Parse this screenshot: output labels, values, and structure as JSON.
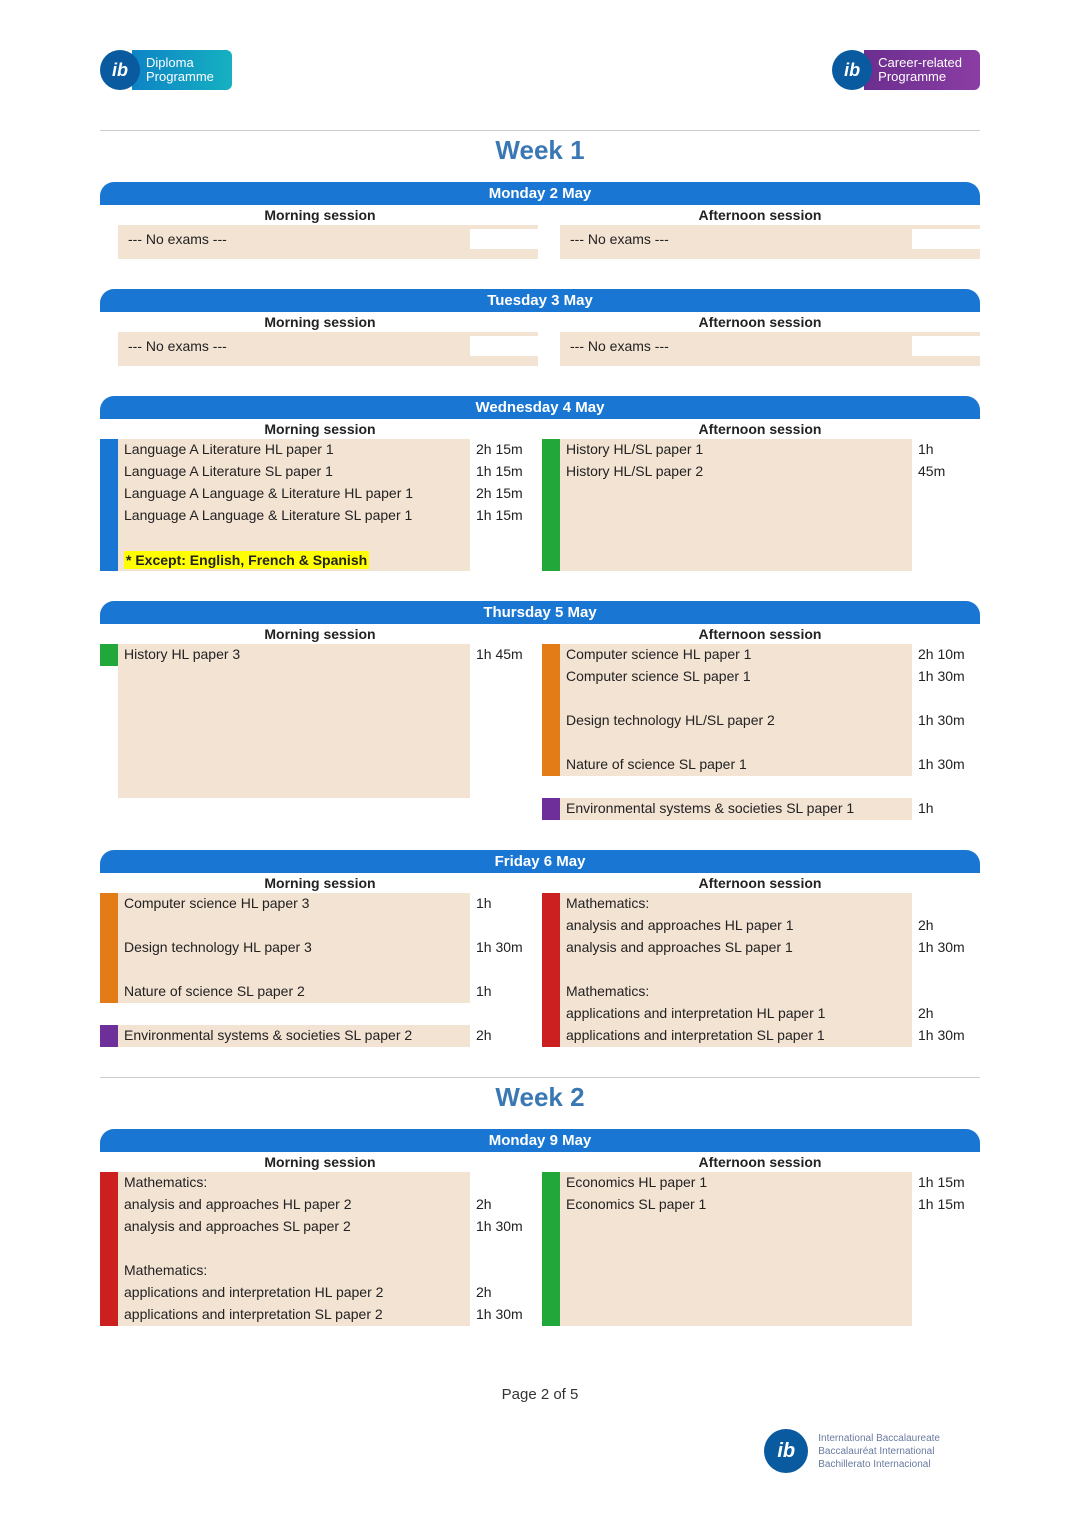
{
  "logos": {
    "left": {
      "badge": "ib",
      "line1": "Diploma",
      "line2": "Programme",
      "style": "dp"
    },
    "right": {
      "badge": "ib",
      "line1": "Career-related",
      "line2": "Programme",
      "style": "cp"
    }
  },
  "colors": {
    "blue": "#1976d2",
    "green": "#22a83a",
    "orange": "#e37b16",
    "purple": "#6e2f9b",
    "red": "#cc1f1f",
    "none": "#ffffff",
    "cell_bg": "#f3e3d3",
    "week_title": "#3a78b4"
  },
  "weeks": [
    {
      "title": "Week 1",
      "days": [
        {
          "header": "Monday 2 May",
          "morning_label": "Morning session",
          "afternoon_label": "Afternoon session",
          "morning": [
            {
              "color": "none",
              "text": "--- No exams ---",
              "dur": ""
            }
          ],
          "afternoon": [
            {
              "color": "none",
              "text": "--- No exams ---",
              "dur": ""
            }
          ]
        },
        {
          "header": "Tuesday 3 May",
          "morning_label": "Morning session",
          "afternoon_label": "Afternoon session",
          "morning": [
            {
              "color": "none",
              "text": "--- No exams ---",
              "dur": ""
            }
          ],
          "afternoon": [
            {
              "color": "none",
              "text": "--- No exams ---",
              "dur": ""
            }
          ]
        },
        {
          "header": "Wednesday 4 May",
          "morning_label": "Morning session",
          "afternoon_label": "Afternoon session",
          "morning": [
            {
              "color": "blue",
              "text": "Language A Literature HL paper 1",
              "dur": "2h 15m"
            },
            {
              "color": "blue",
              "text": "Language A Literature SL paper 1",
              "dur": "1h 15m"
            },
            {
              "color": "blue",
              "text": "Language A Language & Literature HL paper 1",
              "dur": "2h 15m"
            },
            {
              "color": "blue",
              "text": "Language A Language & Literature SL paper 1",
              "dur": "1h 15m"
            },
            {
              "color": "blue",
              "text": "",
              "dur": ""
            },
            {
              "color": "blue",
              "highlight": true,
              "text": "* Except: English, French & Spanish",
              "dur": ""
            }
          ],
          "afternoon": [
            {
              "color": "green",
              "text": "History HL/SL paper 1",
              "dur": "1h"
            },
            {
              "color": "green",
              "text": "History HL/SL paper 2",
              "dur": "45m"
            },
            {
              "color": "green",
              "text": "",
              "dur": ""
            },
            {
              "color": "green",
              "text": "",
              "dur": ""
            },
            {
              "color": "green",
              "text": "",
              "dur": ""
            },
            {
              "color": "green",
              "text": "",
              "dur": ""
            }
          ]
        },
        {
          "header": "Thursday 5 May",
          "morning_label": "Morning session",
          "afternoon_label": "Afternoon session",
          "morning": [
            {
              "color": "green",
              "text": "History HL paper 3",
              "dur": "1h 45m"
            },
            {
              "color": "none",
              "text": "",
              "dur": ""
            },
            {
              "color": "none",
              "text": "",
              "dur": ""
            },
            {
              "color": "none",
              "text": "",
              "dur": ""
            },
            {
              "color": "none",
              "text": "",
              "dur": ""
            },
            {
              "color": "none",
              "text": "",
              "dur": ""
            },
            {
              "color": "none",
              "text": "",
              "dur": ""
            }
          ],
          "afternoon": [
            {
              "color": "orange",
              "text": "Computer science HL paper 1",
              "dur": "2h 10m"
            },
            {
              "color": "orange",
              "text": "Computer science SL paper 1",
              "dur": "1h 30m"
            },
            {
              "color": "orange",
              "text": "",
              "dur": ""
            },
            {
              "color": "orange",
              "text": "Design technology HL/SL paper 2",
              "dur": "1h 30m"
            },
            {
              "color": "orange",
              "text": "",
              "dur": ""
            },
            {
              "color": "orange",
              "text": "Nature of science SL paper 1",
              "dur": "1h 30m"
            },
            {
              "spacer": true
            },
            {
              "color": "purple",
              "text": "Environmental systems & societies SL paper 1",
              "dur": "1h"
            }
          ]
        },
        {
          "header": "Friday 6 May",
          "morning_label": "Morning session",
          "afternoon_label": "Afternoon session",
          "morning": [
            {
              "color": "orange",
              "text": "Computer science HL paper 3",
              "dur": "1h"
            },
            {
              "color": "orange",
              "text": "",
              "dur": ""
            },
            {
              "color": "orange",
              "text": "Design technology HL paper 3",
              "dur": "1h 30m"
            },
            {
              "color": "orange",
              "text": "",
              "dur": ""
            },
            {
              "color": "orange",
              "text": "Nature of science SL paper 2",
              "dur": "1h"
            },
            {
              "spacer": true
            },
            {
              "color": "purple",
              "text": "Environmental systems & societies SL paper 2",
              "dur": "2h"
            }
          ],
          "afternoon": [
            {
              "color": "red",
              "text": "Mathematics:",
              "dur": ""
            },
            {
              "color": "red",
              "text": "analysis and approaches HL paper 1",
              "dur": "2h"
            },
            {
              "color": "red",
              "text": "analysis and approaches SL paper 1",
              "dur": "1h 30m"
            },
            {
              "color": "red",
              "text": "",
              "dur": ""
            },
            {
              "color": "red",
              "text": "Mathematics:",
              "dur": ""
            },
            {
              "color": "red",
              "text": "applications and interpretation HL paper 1",
              "dur": "2h"
            },
            {
              "color": "red",
              "text": "applications and interpretation SL paper 1",
              "dur": "1h 30m"
            }
          ]
        }
      ]
    },
    {
      "title": "Week 2",
      "days": [
        {
          "header": "Monday 9 May",
          "morning_label": "Morning session",
          "afternoon_label": "Afternoon session",
          "morning": [
            {
              "color": "red",
              "text": "Mathematics:",
              "dur": ""
            },
            {
              "color": "red",
              "text": "analysis and approaches HL paper 2",
              "dur": "2h"
            },
            {
              "color": "red",
              "text": "analysis and approaches SL paper 2",
              "dur": "1h 30m"
            },
            {
              "color": "red",
              "text": "",
              "dur": ""
            },
            {
              "color": "red",
              "text": "Mathematics:",
              "dur": ""
            },
            {
              "color": "red",
              "text": "applications and interpretation HL paper 2",
              "dur": "2h"
            },
            {
              "color": "red",
              "text": "applications and interpretation SL paper 2",
              "dur": "1h 30m"
            }
          ],
          "afternoon": [
            {
              "color": "green",
              "text": "Economics HL paper 1",
              "dur": "1h 15m"
            },
            {
              "color": "green",
              "text": "Economics SL paper 1",
              "dur": "1h 15m"
            },
            {
              "color": "green",
              "text": "",
              "dur": ""
            },
            {
              "color": "green",
              "text": "",
              "dur": ""
            },
            {
              "color": "green",
              "text": "",
              "dur": ""
            },
            {
              "color": "green",
              "text": "",
              "dur": ""
            },
            {
              "color": "green",
              "text": "",
              "dur": ""
            }
          ]
        }
      ]
    }
  ],
  "footer": {
    "page": "Page 2 of 5",
    "org1": "International Baccalaureate",
    "org2": "Baccalauréat International",
    "org3": "Bachillerato Internacional",
    "badge": "ib"
  }
}
